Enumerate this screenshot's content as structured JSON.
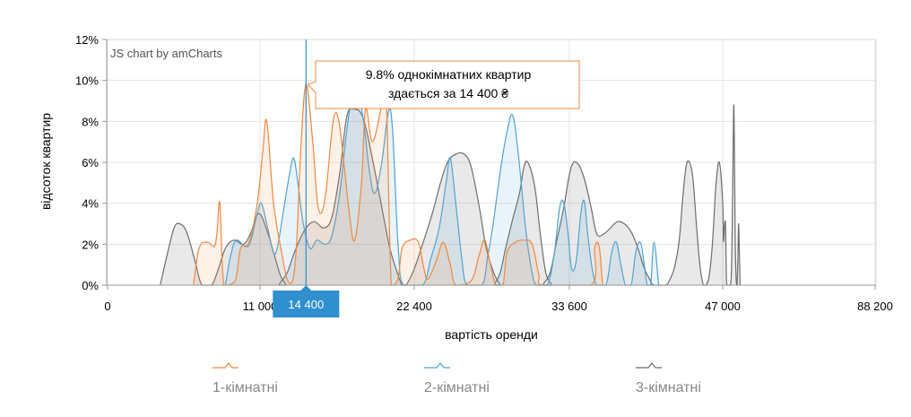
{
  "chart_data": {
    "type": "area",
    "credits": "JS chart by amCharts",
    "ylabel": "відсоток квартир",
    "xlabel": "вартість оренди",
    "x_axis": {
      "ticks": [
        {
          "value": 0,
          "label": "0"
        },
        {
          "value": 11000,
          "label": "11 000"
        },
        {
          "value": 22400,
          "label": "22 400"
        },
        {
          "value": 33600,
          "label": "33 600"
        },
        {
          "value": 47000,
          "label": "47 000"
        },
        {
          "value": 88200,
          "label": "88 200"
        }
      ]
    },
    "y_axis": {
      "min": 0,
      "max": 12,
      "ticks": [
        {
          "value": 0,
          "label": "0%"
        },
        {
          "value": 2,
          "label": "2%"
        },
        {
          "value": 4,
          "label": "4%"
        },
        {
          "value": 6,
          "label": "6%"
        },
        {
          "value": 8,
          "label": "8%"
        },
        {
          "value": 10,
          "label": "10%"
        },
        {
          "value": 12,
          "label": "12%"
        }
      ]
    },
    "grid": true,
    "legend_position": "bottom",
    "cursor": {
      "x": 14400,
      "label": "14 400"
    },
    "tooltip": {
      "x": 14400,
      "y": 9.8,
      "line1": "9.8% однокімнатних квартир",
      "line2": "здається за 14 400 ₴"
    },
    "series": [
      {
        "name": "1-кімнатні",
        "color": "#f0883e",
        "fill_opacity": 0.12,
        "points": [
          [
            6200,
            0
          ],
          [
            6600,
            1.8
          ],
          [
            7200,
            2.1
          ],
          [
            7700,
            1.9
          ],
          [
            7900,
            2.6
          ],
          [
            8100,
            4.0
          ],
          [
            8400,
            0
          ],
          [
            9200,
            0.2
          ],
          [
            9600,
            1.8
          ],
          [
            10200,
            2.1
          ],
          [
            10800,
            4.0
          ],
          [
            11200,
            6.5
          ],
          [
            11500,
            8.0
          ],
          [
            12000,
            4.0
          ],
          [
            12600,
            1.6
          ],
          [
            13000,
            0.3
          ],
          [
            13400,
            0.2
          ],
          [
            13700,
            2.0
          ],
          [
            14000,
            6.5
          ],
          [
            14400,
            9.8
          ],
          [
            14900,
            7.0
          ],
          [
            15300,
            3.8
          ],
          [
            15800,
            4.2
          ],
          [
            16400,
            8.0
          ],
          [
            16800,
            8.1
          ],
          [
            17200,
            6.0
          ],
          [
            17600,
            3.5
          ],
          [
            18000,
            2.2
          ],
          [
            18500,
            5.0
          ],
          [
            18800,
            8.6
          ],
          [
            19300,
            7.0
          ],
          [
            19900,
            8.5
          ],
          [
            20300,
            9.8
          ],
          [
            20700,
            0
          ],
          [
            21200,
            0.3
          ],
          [
            21500,
            1.8
          ],
          [
            22100,
            2.2
          ],
          [
            22700,
            2.1
          ],
          [
            23100,
            0.8
          ],
          [
            23400,
            0.3
          ],
          [
            24000,
            1.2
          ],
          [
            24500,
            2.1
          ],
          [
            25000,
            1.0
          ],
          [
            25400,
            0
          ],
          [
            26500,
            0.2
          ],
          [
            27100,
            1.5
          ],
          [
            27500,
            2.2
          ],
          [
            27900,
            1.0
          ],
          [
            28300,
            0
          ],
          [
            28800,
            0
          ],
          [
            29100,
            1.6
          ],
          [
            29700,
            2.1
          ],
          [
            30300,
            2.2
          ],
          [
            30900,
            2.0
          ],
          [
            31400,
            0.5
          ],
          [
            31700,
            0
          ],
          [
            35500,
            0
          ],
          [
            35800,
            1.8
          ],
          [
            36200,
            1.9
          ],
          [
            36500,
            0
          ]
        ]
      },
      {
        "name": "2-кімнатні",
        "color": "#4ea3d6",
        "fill_opacity": 0.12,
        "points": [
          [
            8500,
            0
          ],
          [
            8900,
            1.5
          ],
          [
            9300,
            2.2
          ],
          [
            9900,
            1.9
          ],
          [
            10300,
            2.1
          ],
          [
            10800,
            3.5
          ],
          [
            11100,
            4.0
          ],
          [
            11500,
            3.0
          ],
          [
            12000,
            1.6
          ],
          [
            12300,
            1.9
          ],
          [
            12700,
            3.5
          ],
          [
            13200,
            5.5
          ],
          [
            13500,
            6.2
          ],
          [
            13800,
            5.0
          ],
          [
            14200,
            3.0
          ],
          [
            14700,
            1.8
          ],
          [
            15200,
            2.2
          ],
          [
            15800,
            2.0
          ],
          [
            16300,
            2.4
          ],
          [
            16900,
            4.5
          ],
          [
            17400,
            7.5
          ],
          [
            17800,
            8.9
          ],
          [
            18500,
            8.6
          ],
          [
            19100,
            5.5
          ],
          [
            19500,
            4.5
          ],
          [
            20000,
            6.0
          ],
          [
            20500,
            8.5
          ],
          [
            20800,
            7.5
          ],
          [
            21200,
            2.0
          ],
          [
            21600,
            0
          ],
          [
            23000,
            0
          ],
          [
            23600,
            1.3
          ],
          [
            24200,
            2.8
          ],
          [
            24700,
            5.0
          ],
          [
            25000,
            6.2
          ],
          [
            25400,
            4.0
          ],
          [
            25800,
            1.5
          ],
          [
            26200,
            0
          ],
          [
            27300,
            0
          ],
          [
            27700,
            1.4
          ],
          [
            28100,
            3.0
          ],
          [
            28600,
            5.5
          ],
          [
            29100,
            7.5
          ],
          [
            29500,
            8.3
          ],
          [
            29900,
            6.5
          ],
          [
            30400,
            3.0
          ],
          [
            30800,
            1.0
          ],
          [
            31200,
            0
          ],
          [
            32000,
            0
          ],
          [
            32500,
            1.5
          ],
          [
            32900,
            3.8
          ],
          [
            33200,
            4.0
          ],
          [
            33500,
            2.5
          ],
          [
            33800,
            0.8
          ],
          [
            34200,
            1.2
          ],
          [
            34600,
            3.5
          ],
          [
            34900,
            4.1
          ],
          [
            35200,
            2.5
          ],
          [
            35600,
            0.8
          ],
          [
            36000,
            0
          ],
          [
            36800,
            0
          ],
          [
            37300,
            1.6
          ],
          [
            37700,
            2.1
          ],
          [
            38100,
            1.0
          ],
          [
            38500,
            0
          ],
          [
            39000,
            0
          ],
          [
            39400,
            1.6
          ],
          [
            39800,
            2.1
          ],
          [
            40100,
            1.2
          ],
          [
            40400,
            0
          ],
          [
            40700,
            0
          ],
          [
            41000,
            2.1
          ],
          [
            41400,
            0
          ]
        ]
      },
      {
        "name": "3-кімнатні",
        "color": "#6d6d6d",
        "fill_opacity": 0.15,
        "points": [
          [
            3800,
            0
          ],
          [
            4300,
            1.5
          ],
          [
            4800,
            2.8
          ],
          [
            5200,
            3.0
          ],
          [
            5700,
            2.6
          ],
          [
            6300,
            1.2
          ],
          [
            6800,
            0
          ],
          [
            7500,
            0
          ],
          [
            8000,
            0.8
          ],
          [
            8500,
            1.8
          ],
          [
            9100,
            2.2
          ],
          [
            9800,
            2.0
          ],
          [
            10300,
            2.5
          ],
          [
            10900,
            3.5
          ],
          [
            11500,
            2.7
          ],
          [
            12000,
            1.6
          ],
          [
            12500,
            0.5
          ],
          [
            12900,
            0
          ],
          [
            12400,
            0
          ],
          [
            13000,
            0.6
          ],
          [
            13600,
            1.7
          ],
          [
            14300,
            2.7
          ],
          [
            15000,
            3.1
          ],
          [
            15700,
            2.8
          ],
          [
            16300,
            3.3
          ],
          [
            16900,
            5.5
          ],
          [
            17400,
            8.2
          ],
          [
            17900,
            8.6
          ],
          [
            18600,
            8.2
          ],
          [
            19300,
            6.2
          ],
          [
            20000,
            3.8
          ],
          [
            20600,
            1.8
          ],
          [
            21100,
            0.7
          ],
          [
            21500,
            0
          ],
          [
            21800,
            0
          ],
          [
            22400,
            0.8
          ],
          [
            23000,
            2.0
          ],
          [
            23700,
            3.5
          ],
          [
            24300,
            5.0
          ],
          [
            24800,
            6.0
          ],
          [
            25400,
            6.4
          ],
          [
            26000,
            6.4
          ],
          [
            26500,
            5.8
          ],
          [
            27100,
            3.8
          ],
          [
            27600,
            1.8
          ],
          [
            28200,
            0.5
          ],
          [
            28600,
            0
          ],
          [
            28200,
            0
          ],
          [
            28600,
            0.6
          ],
          [
            29000,
            1.8
          ],
          [
            29500,
            3.2
          ],
          [
            30000,
            4.5
          ],
          [
            30300,
            5.7
          ],
          [
            30600,
            6.0
          ],
          [
            31100,
            4.8
          ],
          [
            31500,
            2.5
          ],
          [
            31900,
            0.6
          ],
          [
            32300,
            0
          ],
          [
            31700,
            0
          ],
          [
            32200,
            0.6
          ],
          [
            32700,
            2.2
          ],
          [
            33200,
            3.8
          ],
          [
            33600,
            5.4
          ],
          [
            34000,
            6.0
          ],
          [
            34500,
            5.8
          ],
          [
            35000,
            5.0
          ],
          [
            35500,
            3.8
          ],
          [
            36000,
            2.5
          ],
          [
            36600,
            2.5
          ],
          [
            37200,
            2.8
          ],
          [
            37800,
            3.1
          ],
          [
            38400,
            3.0
          ],
          [
            39000,
            2.6
          ],
          [
            39600,
            1.8
          ],
          [
            40100,
            0.9
          ],
          [
            40600,
            0.3
          ],
          [
            41000,
            0
          ],
          [
            42000,
            0
          ],
          [
            42400,
            0.3
          ],
          [
            42800,
            0.9
          ],
          [
            43200,
            2.2
          ],
          [
            43500,
            4.2
          ],
          [
            43800,
            5.8
          ],
          [
            44100,
            6.0
          ],
          [
            44400,
            5.2
          ],
          [
            44700,
            3.0
          ],
          [
            45000,
            1.0
          ],
          [
            45300,
            0
          ],
          [
            45500,
            0
          ],
          [
            45800,
            0.4
          ],
          [
            46100,
            2.0
          ],
          [
            46400,
            4.8
          ],
          [
            46700,
            6.0
          ],
          [
            47000,
            4.0
          ],
          [
            47200,
            2.2
          ],
          [
            47400,
            2.6
          ],
          [
            47600,
            3.1
          ],
          [
            47800,
            2.8
          ],
          [
            48000,
            0.4
          ],
          [
            48200,
            0
          ],
          [
            49100,
            0
          ],
          [
            49400,
            1.0
          ],
          [
            49600,
            3.2
          ],
          [
            49800,
            6.5
          ],
          [
            50000,
            8.8
          ],
          [
            50200,
            6.0
          ],
          [
            50400,
            2.2
          ],
          [
            50600,
            0.4
          ],
          [
            50800,
            0
          ],
          [
            50900,
            0
          ],
          [
            51100,
            1.2
          ],
          [
            51300,
            3.0
          ],
          [
            51500,
            1.5
          ],
          [
            51700,
            0
          ]
        ]
      }
    ]
  }
}
